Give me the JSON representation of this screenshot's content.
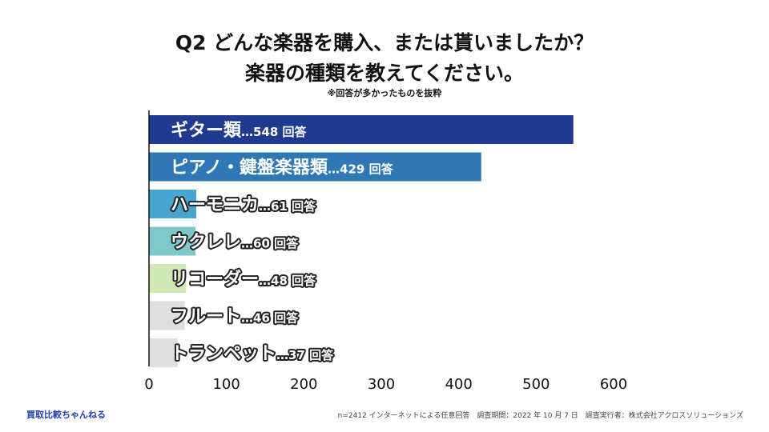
{
  "chart_data": {
    "type": "bar",
    "orientation": "horizontal",
    "title_line1": "Q2 どんな楽器を購入、または貰いましたか？",
    "title_line2": "楽器の種類を教えてください。",
    "note": "※回答が多かったものを抜粋",
    "categories": [
      "ギター類",
      "ピアノ・鍵盤楽器類",
      "ハーモニカ",
      "ウクレレ",
      "リコーダー",
      "フルート",
      "トランペット"
    ],
    "values": [
      548,
      429,
      61,
      60,
      48,
      46,
      37
    ],
    "value_labels": [
      "…548 回答",
      "…429 回答",
      "…61 回答",
      "…60 回答",
      "…48 回答",
      "…46 回答",
      "…37 回答"
    ],
    "colors": [
      "#1f3a8f",
      "#2e79b5",
      "#47a6cf",
      "#7ec8c9",
      "#cfe9b4",
      "#dedede",
      "#dedede"
    ],
    "xlim": [
      0,
      600
    ],
    "xticks": [
      "0",
      "100",
      "200",
      "300",
      "400",
      "500",
      "600"
    ],
    "xlabel": "",
    "ylabel": ""
  },
  "footer": {
    "brand": "買取比較ちゃんねる",
    "survey_info": "n=2412 インターネットによる任意回答　調査期間：2022 年 10 月 7 日　調査実行者：株式会社アクロスソリューションズ"
  }
}
